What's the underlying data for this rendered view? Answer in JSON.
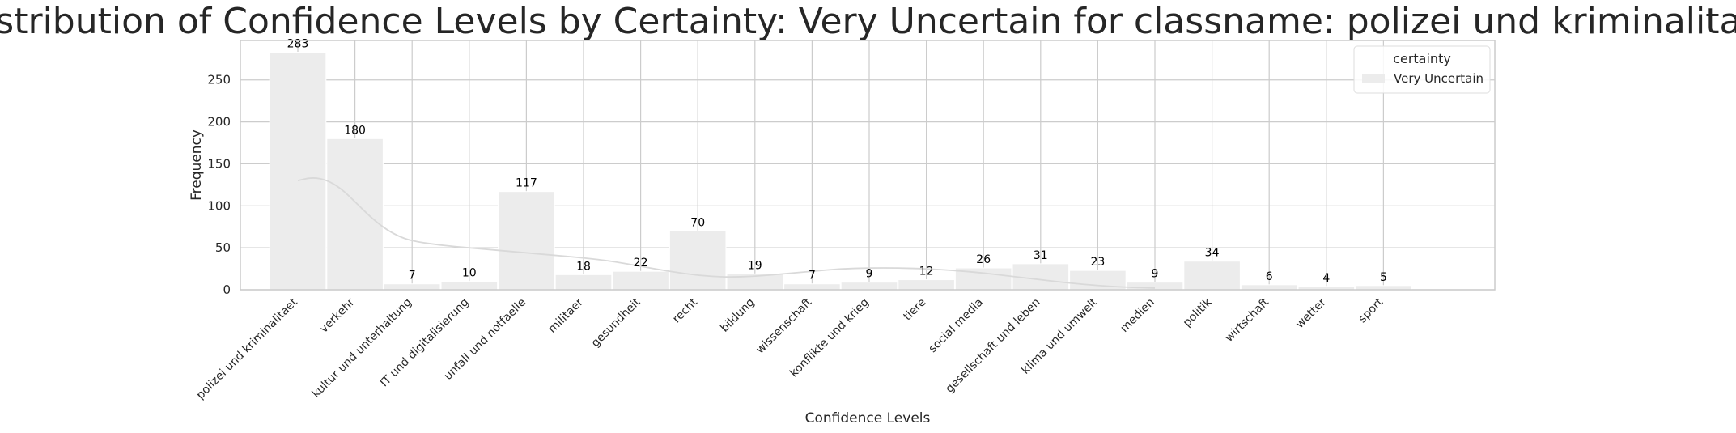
{
  "chart_data": {
    "type": "bar",
    "title": "Distribution of Confidence Levels by Certainty: Very Uncertain for classname: polizei und kriminalitaet",
    "xlabel": "Confidence Levels",
    "ylabel": "Frequency",
    "ylim": [
      0,
      297
    ],
    "yticks": [
      0,
      50,
      100,
      150,
      200,
      250
    ],
    "grid": true,
    "legend_placement": "top-right",
    "legend_title": "certainty",
    "categories": [
      "polizei und kriminalitaet",
      "verkehr",
      "kultur und unterhaltung",
      "IT und digitalisierung",
      "unfall und notfaelle",
      "militaer",
      "gesundheit",
      "recht",
      "bildung",
      "wissenschaft",
      "konflikte und krieg",
      "tiere",
      "social media",
      "gesellschaft und leben",
      "klima und umwelt",
      "medien",
      "politik",
      "wirtschaft",
      "wetter",
      "sport"
    ],
    "series": [
      {
        "name": "Very Uncertain",
        "color": "#ececec",
        "values": [
          283,
          180,
          7,
          10,
          117,
          18,
          22,
          70,
          19,
          7,
          9,
          12,
          26,
          31,
          23,
          9,
          34,
          6,
          4,
          5
        ],
        "value_labels": [
          "283",
          "180",
          "7",
          "10",
          "117",
          "18",
          "22",
          "70",
          "19",
          "7",
          "9",
          "12",
          "26",
          "31",
          "23",
          "9",
          "34",
          "6",
          "4",
          "5"
        ]
      }
    ],
    "kde_line": {
      "color": "#d9d9d9",
      "points": [
        [
          0.0,
          130
        ],
        [
          0.25,
          134
        ],
        [
          0.5,
          131
        ],
        [
          0.75,
          121
        ],
        [
          1.0,
          105
        ],
        [
          1.25,
          88
        ],
        [
          1.5,
          74
        ],
        [
          1.75,
          64
        ],
        [
          2.0,
          58
        ],
        [
          2.5,
          53
        ],
        [
          3.0,
          50
        ],
        [
          3.5,
          47
        ],
        [
          4.0,
          44
        ],
        [
          4.5,
          41
        ],
        [
          5.0,
          38
        ],
        [
          5.5,
          34
        ],
        [
          6.0,
          28
        ],
        [
          6.5,
          22
        ],
        [
          7.0,
          17
        ],
        [
          7.5,
          15
        ],
        [
          8.0,
          16
        ],
        [
          8.5,
          19
        ],
        [
          9.0,
          22
        ],
        [
          9.5,
          25
        ],
        [
          10.0,
          26
        ],
        [
          10.5,
          26
        ],
        [
          11.0,
          25
        ],
        [
          11.5,
          23
        ],
        [
          12.0,
          20
        ],
        [
          12.5,
          16
        ],
        [
          13.0,
          12
        ],
        [
          13.5,
          8
        ],
        [
          14.0,
          5
        ],
        [
          14.5,
          3
        ],
        [
          15.0,
          2
        ]
      ]
    }
  }
}
